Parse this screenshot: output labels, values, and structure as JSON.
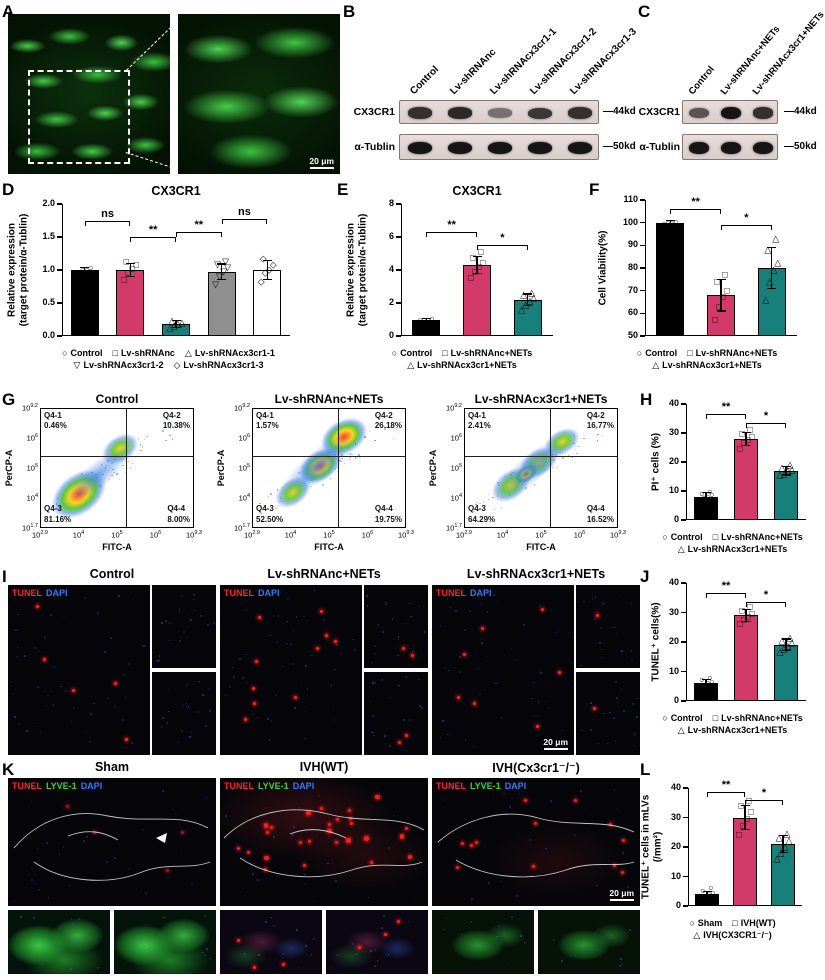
{
  "panels": {
    "A": {
      "label": "A",
      "scale_bar": "20 μm"
    },
    "B": {
      "label": "B",
      "lanes": [
        "Control",
        "Lv-shRNAnc",
        "Lv-shRNAcx3cr1-1",
        "Lv-shRNAcx3cr1-2",
        "Lv-shRNAcx3cr1-3"
      ],
      "rows": [
        {
          "protein": "CX3CR1",
          "size": "44kd",
          "intensities": [
            0.8,
            0.85,
            0.35,
            0.75,
            0.8
          ]
        },
        {
          "protein": "α-Tublin",
          "size": "50kd",
          "intensities": [
            1,
            1,
            1,
            1,
            1
          ]
        }
      ]
    },
    "C": {
      "label": "C",
      "lanes": [
        "Control",
        "Lv-shRNAnc+NETs",
        "Lv-shRNAcx3cr1+NETs"
      ],
      "rows": [
        {
          "protein": "CX3CR1",
          "size": "44kd",
          "intensities": [
            0.55,
            1,
            0.8
          ]
        },
        {
          "protein": "α-Tublin",
          "size": "50kd",
          "intensities": [
            1,
            1,
            1
          ]
        }
      ]
    },
    "D": {
      "label": "D",
      "chart": {
        "type": "bar",
        "title": "CX3CR1",
        "ylabel_lines": [
          "Relative expression",
          "(target protein/α-Tublin)"
        ],
        "ylim": [
          0,
          2
        ],
        "yticks": [
          "0.0",
          "0.5",
          "1.0",
          "1.5",
          "2.0"
        ],
        "categories": [
          "Control",
          "Lv-shRNAnc",
          "Lv-shRNAcx3cr1-1",
          "Lv-shRNAcx3cr1-2",
          "Lv-shRNAcx3cr1-3"
        ],
        "values": [
          1.0,
          1.0,
          0.18,
          0.97,
          1.0
        ],
        "errors": [
          0.04,
          0.1,
          0.05,
          0.12,
          0.14
        ],
        "points": [
          [
            0.97,
            1.0,
            1.0,
            1.03
          ],
          [
            0.85,
            0.95,
            1.02,
            1.08,
            1.12
          ],
          [
            0.12,
            0.15,
            0.18,
            0.2,
            0.23
          ],
          [
            0.78,
            0.9,
            0.97,
            1.03,
            1.08,
            1.12
          ],
          [
            0.82,
            0.95,
            1.0,
            1.08,
            1.16
          ]
        ],
        "bar_colors": [
          "#000000",
          "#d23a6b",
          "#17807a",
          "#8f8f8f",
          "#ffffff"
        ],
        "markers": [
          "○",
          "□",
          "△",
          "▽",
          "◇"
        ],
        "significance": [
          {
            "from": 0,
            "to": 1,
            "label": "ns",
            "y": 1.74
          },
          {
            "from": 1,
            "to": 2,
            "label": "**",
            "y": 1.5
          },
          {
            "from": 2,
            "to": 3,
            "label": "**",
            "y": 1.58
          },
          {
            "from": 3,
            "to": 4,
            "label": "ns",
            "y": 1.78
          }
        ],
        "legend_rows": [
          [
            {
              "symbol": "○",
              "label": "Control"
            },
            {
              "symbol": "□",
              "label": "Lv-shRNAnc"
            },
            {
              "symbol": "△",
              "label": "Lv-shRNAcx3cr1-1"
            }
          ],
          [
            {
              "symbol": "▽",
              "label": "Lv-shRNAcx3cr1-2"
            },
            {
              "symbol": "◇",
              "label": "Lv-shRNAcx3cr1-3"
            }
          ]
        ]
      }
    },
    "E": {
      "label": "E",
      "chart": {
        "type": "bar",
        "title": "CX3CR1",
        "ylabel_lines": [
          "Relative expression",
          "(target protein/α-Tublin)"
        ],
        "ylim": [
          0,
          8
        ],
        "yticks": [
          "0",
          "2",
          "4",
          "6",
          "8"
        ],
        "categories": [
          "Control",
          "Lv-shRNAnc+NETs",
          "Lv-shRNAcx3cr1+NETs"
        ],
        "values": [
          1.0,
          4.3,
          2.2
        ],
        "errors": [
          0.05,
          0.5,
          0.35
        ],
        "points": [
          [
            0.95,
            1.0,
            1.0,
            1.05
          ],
          [
            3.5,
            3.9,
            4.2,
            4.4,
            4.7,
            5.1
          ],
          [
            1.6,
            1.9,
            2.1,
            2.3,
            2.5,
            2.6
          ]
        ],
        "bar_colors": [
          "#000000",
          "#d23a6b",
          "#17807a"
        ],
        "markers": [
          "○",
          "□",
          "△"
        ],
        "significance": [
          {
            "from": 0,
            "to": 1,
            "label": "**",
            "y": 6.3
          },
          {
            "from": 1,
            "to": 2,
            "label": "*",
            "y": 5.5
          }
        ],
        "legend_rows": [
          [
            {
              "symbol": "○",
              "label": "Control"
            },
            {
              "symbol": "□",
              "label": "Lv-shRNAnc+NETs"
            }
          ],
          [
            {
              "symbol": "△",
              "label": "Lv-shRNAcx3cr1+NETs"
            }
          ]
        ]
      }
    },
    "F": {
      "label": "F",
      "chart": {
        "type": "bar",
        "ylabel_lines": [
          "Cell Viability(%)"
        ],
        "ylim": [
          50,
          110
        ],
        "yticks": [
          "50",
          "60",
          "70",
          "80",
          "90",
          "100",
          "110"
        ],
        "categories": [
          "Control",
          "Lv-shRNAnc+NETs",
          "Lv-shRNAcx3cr1+NETs"
        ],
        "values": [
          100,
          68,
          80
        ],
        "errors": [
          0.8,
          7,
          9
        ],
        "points": [
          [
            99.6,
            100,
            100,
            100.4
          ],
          [
            57,
            63,
            67,
            70,
            74,
            77
          ],
          [
            66,
            74,
            79,
            82,
            88,
            93
          ]
        ],
        "bar_colors": [
          "#000000",
          "#d23a6b",
          "#17807a"
        ],
        "markers": [
          "○",
          "□",
          "△"
        ],
        "significance": [
          {
            "from": 0,
            "to": 1,
            "label": "**",
            "y": 106
          },
          {
            "from": 1,
            "to": 2,
            "label": "*",
            "y": 99
          }
        ],
        "legend_rows": [
          [
            {
              "symbol": "○",
              "label": "Control"
            },
            {
              "symbol": "□",
              "label": "Lv-shRNAnc+NETs"
            }
          ],
          [
            {
              "symbol": "△",
              "label": "Lv-shRNAcx3cr1+NETs"
            }
          ]
        ]
      }
    },
    "G": {
      "label": "G",
      "ylabel": "PerCP-A",
      "xlabel": "FITC-A",
      "ytick_exponents": [
        "9.2",
        "6",
        "5",
        "4",
        "1.7"
      ],
      "xtick_exponents": [
        "2.9",
        "4",
        "5",
        "6",
        "9.3"
      ],
      "plots": [
        {
          "title": "Control",
          "quadrants": [
            {
              "name": "Q4-1",
              "pct": "0.46%"
            },
            {
              "name": "Q4-2",
              "pct": "10.38%"
            },
            {
              "name": "Q4-3",
              "pct": "81.16%"
            },
            {
              "name": "Q4-4",
              "pct": "8.00%"
            }
          ]
        },
        {
          "title": "Lv-shRNAnc+NETs",
          "quadrants": [
            {
              "name": "Q4-1",
              "pct": "1.57%"
            },
            {
              "name": "Q4-2",
              "pct": "26.18%"
            },
            {
              "name": "Q4-3",
              "pct": "52.50%"
            },
            {
              "name": "Q4-4",
              "pct": "19.75%"
            }
          ]
        },
        {
          "title": "Lv-shRNAcx3cr1+NETs",
          "quadrants": [
            {
              "name": "Q4-1",
              "pct": "2.41%"
            },
            {
              "name": "Q4-2",
              "pct": "16.77%"
            },
            {
              "name": "Q4-3",
              "pct": "64.29%"
            },
            {
              "name": "Q4-4",
              "pct": "16.52%"
            }
          ]
        }
      ]
    },
    "H": {
      "label": "H",
      "chart": {
        "type": "bar",
        "ylabel_lines": [
          "PI⁺ cells (%)"
        ],
        "ylim": [
          0,
          40
        ],
        "yticks": [
          "0",
          "10",
          "20",
          "30",
          "40"
        ],
        "categories": [
          "Control",
          "Lv-shRNAnc+NETs",
          "Lv-shRNAcx3cr1+NETs"
        ],
        "values": [
          8,
          28,
          17
        ],
        "errors": [
          1.5,
          2.2,
          1.5
        ],
        "points": [
          [
            6.5,
            7.5,
            8,
            8.5,
            9,
            9.8
          ],
          [
            24.5,
            26.5,
            27.5,
            28.5,
            29.5,
            31
          ],
          [
            15.5,
            16,
            16.8,
            17.3,
            18,
            19
          ]
        ],
        "bar_colors": [
          "#000000",
          "#d23a6b",
          "#17807a"
        ],
        "markers": [
          "○",
          "□",
          "△"
        ],
        "significance": [
          {
            "from": 0,
            "to": 1,
            "label": "**",
            "y": 36.5
          },
          {
            "from": 1,
            "to": 2,
            "label": "*",
            "y": 33.5
          }
        ],
        "legend_rows": [
          [
            {
              "symbol": "○",
              "label": "Control"
            },
            {
              "symbol": "□",
              "label": "Lv-shRNAnc+NETs"
            }
          ],
          [
            {
              "symbol": "△",
              "label": "Lv-shRNAcx3cr1+NETs"
            }
          ]
        ]
      }
    },
    "I": {
      "label": "I",
      "stain_labels": [
        {
          "text": "TUNEL",
          "color": "#ff2222"
        },
        {
          "text": "DAPI",
          "color": "#2f7bff"
        }
      ],
      "groups": [
        {
          "title": "Control"
        },
        {
          "title": "Lv-shRNAnc+NETs"
        },
        {
          "title": "Lv-shRNAcx3cr1+NETs",
          "scale_bar": "20 μm"
        }
      ]
    },
    "J": {
      "label": "J",
      "chart": {
        "type": "bar",
        "ylabel_lines": [
          "TUNEL⁺ cells(%)"
        ],
        "ylim": [
          0,
          40
        ],
        "yticks": [
          "0",
          "10",
          "20",
          "30",
          "40"
        ],
        "categories": [
          "Control",
          "Lv-shRNAnc+NETs",
          "Lv-shRNAcx3cr1+NETs"
        ],
        "values": [
          6,
          29,
          19
        ],
        "errors": [
          1.2,
          2,
          2
        ],
        "points": [
          [
            4.5,
            5.2,
            6,
            6.5,
            7,
            7.8
          ],
          [
            26,
            27.5,
            28.5,
            29.5,
            30.5,
            32
          ],
          [
            16.5,
            17.5,
            18.5,
            19.5,
            20.5,
            21.5
          ]
        ],
        "bar_colors": [
          "#000000",
          "#d23a6b",
          "#17807a"
        ],
        "markers": [
          "○",
          "□",
          "△"
        ],
        "significance": [
          {
            "from": 0,
            "to": 1,
            "label": "**",
            "y": 36.5
          },
          {
            "from": 1,
            "to": 2,
            "label": "*",
            "y": 33.5
          }
        ],
        "legend_rows": [
          [
            {
              "symbol": "○",
              "label": "Control"
            },
            {
              "symbol": "□",
              "label": "Lv-shRNAnc+NETs"
            }
          ],
          [
            {
              "symbol": "△",
              "label": "Lv-shRNAcx3cr1+NETs"
            }
          ]
        ]
      }
    },
    "K": {
      "label": "K",
      "stain_labels": [
        {
          "text": "TUNEL",
          "color": "#ff2222"
        },
        {
          "text": "LYVE-1",
          "color": "#35d435"
        },
        {
          "text": "DAPI",
          "color": "#2f7bff"
        }
      ],
      "groups": [
        {
          "title": "Sham"
        },
        {
          "title": "IVH(WT)"
        },
        {
          "title": "IVH(Cx3cr1⁻/⁻)",
          "scale_bar": "20 μm"
        }
      ]
    },
    "L": {
      "label": "L",
      "chart": {
        "type": "bar",
        "ylabel_lines": [
          "TUNEL⁺ cells in mLVs",
          "(/mm²)"
        ],
        "ylim": [
          0,
          40
        ],
        "yticks": [
          "0",
          "10",
          "20",
          "30",
          "40"
        ],
        "categories": [
          "Sham",
          "IVH(WT)",
          "IVH(CX3CR1⁻/⁻)"
        ],
        "values": [
          4,
          30,
          21
        ],
        "errors": [
          1,
          4,
          3
        ],
        "points": [
          [
            2.5,
            3.2,
            4,
            4.5,
            5,
            6
          ],
          [
            24,
            27,
            29.5,
            32,
            34,
            35.5
          ],
          [
            16,
            18,
            20,
            22,
            23,
            24.5
          ]
        ],
        "bar_colors": [
          "#000000",
          "#d23a6b",
          "#17807a"
        ],
        "markers": [
          "○",
          "□",
          "△"
        ],
        "significance": [
          {
            "from": 0,
            "to": 1,
            "label": "**",
            "y": 38.5
          },
          {
            "from": 1,
            "to": 2,
            "label": "*",
            "y": 36
          }
        ],
        "legend_rows": [
          [
            {
              "symbol": "○",
              "label": "Sham"
            },
            {
              "symbol": "□",
              "label": "IVH(WT)"
            }
          ],
          [
            {
              "symbol": "△",
              "label": "IVH(CX3CR1⁻/⁻)"
            }
          ]
        ]
      }
    }
  }
}
